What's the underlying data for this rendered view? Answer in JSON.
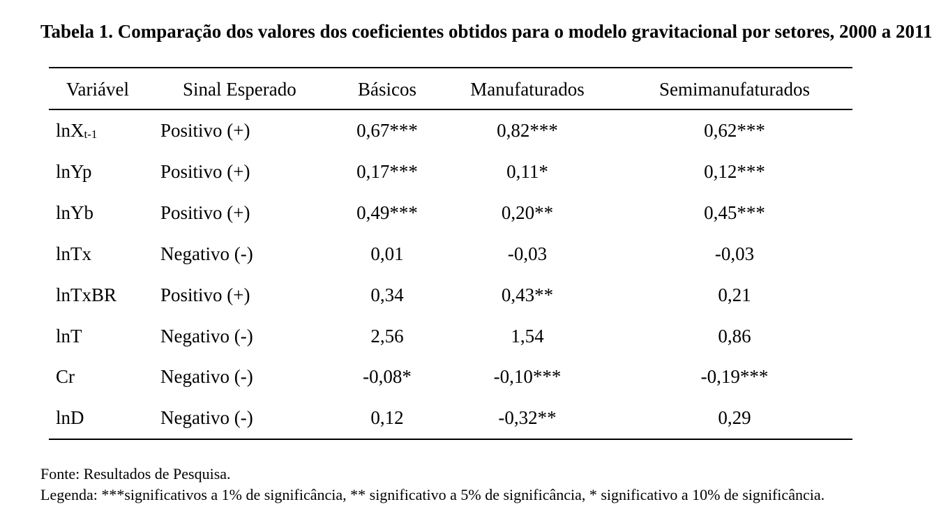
{
  "caption": "Tabela 1. Comparação dos valores dos coeficientes obtidos para o modelo gravitacional por setores, 2000 a 2011",
  "headers": {
    "variavel": "Variável",
    "sinal": "Sinal Esperado",
    "basicos": "Básicos",
    "manufaturados": "Manufaturados",
    "semimanufaturados": "Semimanufaturados"
  },
  "rows": [
    {
      "var": "lnX",
      "var_sub": "t-1",
      "sinal": "Positivo (+)",
      "basicos": "0,67***",
      "manufaturados": "0,82***",
      "semimanufaturados": "0,62***"
    },
    {
      "var": "lnYp",
      "sinal": "Positivo (+)",
      "basicos": "0,17***",
      "manufaturados": "0,11*",
      "semimanufaturados": "0,12***"
    },
    {
      "var": "lnYb",
      "sinal": "Positivo (+)",
      "basicos": "0,49***",
      "manufaturados": "0,20**",
      "semimanufaturados": "0,45***"
    },
    {
      "var": "lnTx",
      "sinal": "Negativo (-)",
      "basicos": "0,01",
      "manufaturados": "-0,03",
      "semimanufaturados": "-0,03"
    },
    {
      "var": "lnTxBR",
      "sinal": "Positivo (+)",
      "basicos": "0,34",
      "manufaturados": "0,43**",
      "semimanufaturados": "0,21"
    },
    {
      "var": "lnT",
      "sinal": "Negativo (-)",
      "basicos": "2,56",
      "manufaturados": "1,54",
      "semimanufaturados": "0,86"
    },
    {
      "var": "Cr",
      "sinal": "Negativo (-)",
      "basicos": "-0,08*",
      "manufaturados": "-0,10***",
      "semimanufaturados": "-0,19***"
    },
    {
      "var": "lnD",
      "sinal": "Negativo (-)",
      "basicos": "0,12",
      "manufaturados": "-0,32**",
      "semimanufaturados": "0,29"
    }
  ],
  "source": "Fonte: Resultados de Pesquisa.",
  "legend": "Legenda: ***significativos a 1% de significância, ** significativo a 5% de significância, * significativo a 10% de significância."
}
